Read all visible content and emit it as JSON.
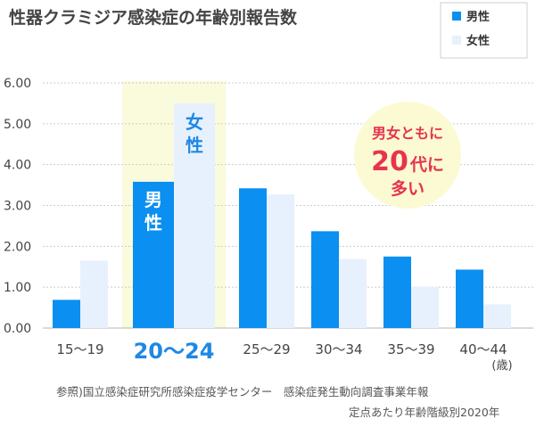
{
  "chart_data": {
    "type": "bar",
    "title": "性器クラミジア感染症の年齢別報告数",
    "xlabel": "",
    "ylabel": "",
    "unit_label": "(歳)",
    "ylim": [
      0,
      6
    ],
    "yticks": [
      "0.00",
      "1.00",
      "2.00",
      "3.00",
      "4.00",
      "5.00",
      "6.00"
    ],
    "grid": true,
    "legend_position": "top-right",
    "categories": [
      "15〜19",
      "20〜24",
      "25〜29",
      "30〜34",
      "35〜39",
      "40〜44"
    ],
    "highlight_category": "20〜24",
    "series": [
      {
        "name": "男性",
        "values": [
          0.69,
          3.58,
          3.42,
          2.37,
          1.75,
          1.43
        ]
      },
      {
        "name": "女性",
        "values": [
          1.65,
          5.5,
          3.27,
          1.69,
          1.01,
          0.58
        ]
      }
    ],
    "bar_labels": {
      "male": "男性",
      "female": "女性"
    },
    "annotation": {
      "line1": "男女ともに",
      "line2_num": "20",
      "line2_text": "代に",
      "line3": "多い"
    },
    "source": {
      "line1": "参照)国立感染症研究所感染症疫学センター　感染症発生動向調査事業年報",
      "line2": "定点あたり年齢階級別2020年"
    }
  },
  "colors": {
    "male": "#0b8ff0",
    "female": "#e7f1fd",
    "highlight_band": "#fafadc",
    "annotation_bg": "#fbfad3",
    "annotation_text": "#e8334f",
    "highlight_label": "#1e88e5",
    "text": "#444444",
    "grid": "#cccccc"
  }
}
